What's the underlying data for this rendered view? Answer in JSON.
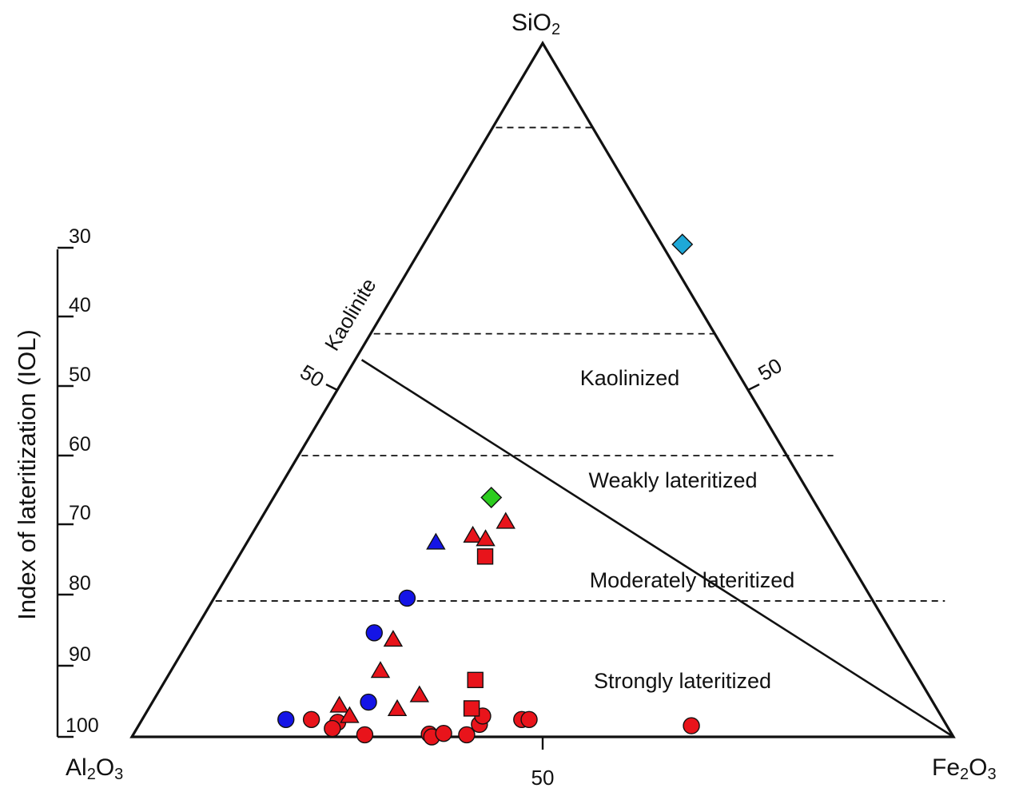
{
  "chart_data": {
    "type": "scatter",
    "title": "",
    "vertices": {
      "top": {
        "prefix": "SiO",
        "sub": "2"
      },
      "left": {
        "prefix": "Al",
        "sub": "2",
        "suffix": "O",
        "sub2": "3"
      },
      "right": {
        "prefix": "Fe",
        "sub": "2",
        "suffix": "O",
        "sub2": "3"
      }
    },
    "edge_ticks": {
      "bottom": "50",
      "left": "50",
      "right": "50"
    },
    "kaolinite_label": "Kaolinite",
    "iol_axis": {
      "label": "Index of lateritization (IOL)",
      "ticks": [
        "30",
        "40",
        "50",
        "60",
        "70",
        "80",
        "90",
        "100"
      ],
      "values": [
        30,
        40,
        50,
        60,
        70,
        80,
        90,
        100
      ]
    },
    "zones": [
      {
        "name": "Kaolinized",
        "iol_low": 35,
        "iol_high": 57
      },
      {
        "name": "Weakly lateritized",
        "iol_low": 57,
        "iol_high": 70
      },
      {
        "name": "Moderately lateritized",
        "iol_low": 70,
        "iol_high": 85.5
      },
      {
        "name": "Strongly lateritized",
        "iol_low": 85.5,
        "iol_high": 100
      }
    ],
    "boundaries_iol": [
      35,
      57,
      70,
      85.5
    ],
    "kaolinite_line": {
      "from": {
        "SiO2": 54,
        "Al2O3": 46,
        "Fe2O3": 0
      },
      "to": {
        "SiO2": 0,
        "Al2O3": 0,
        "Fe2O3": 100
      }
    },
    "series": [
      {
        "marker": "circle",
        "color": "#e8141b",
        "points": [
          {
            "SiO2": 2.5,
            "Fe2O3": 20.6
          },
          {
            "SiO2": 2.1,
            "Fe2O3": 24.0
          },
          {
            "SiO2": 1.2,
            "Fe2O3": 23.8
          },
          {
            "SiO2": 0.3,
            "Fe2O3": 28.2
          },
          {
            "SiO2": 0.4,
            "Fe2O3": 36.0
          },
          {
            "SiO2": 0.0,
            "Fe2O3": 36.5
          },
          {
            "SiO2": 0.5,
            "Fe2O3": 37.7
          },
          {
            "SiO2": 0.3,
            "Fe2O3": 40.6
          },
          {
            "SiO2": 1.8,
            "Fe2O3": 41.4
          },
          {
            "SiO2": 3.0,
            "Fe2O3": 41.2
          },
          {
            "SiO2": 2.5,
            "Fe2O3": 46.2
          },
          {
            "SiO2": 2.5,
            "Fe2O3": 47.1
          },
          {
            "SiO2": 1.6,
            "Fe2O3": 67.3
          }
        ]
      },
      {
        "marker": "triangle",
        "color": "#e8141b",
        "points": [
          {
            "SiO2": 29.0,
            "Fe2O3": 27.0
          },
          {
            "SiO2": 28.5,
            "Fe2O3": 28.8
          },
          {
            "SiO2": 31.0,
            "Fe2O3": 30.0
          },
          {
            "SiO2": 14.0,
            "Fe2O3": 24.8
          },
          {
            "SiO2": 9.5,
            "Fe2O3": 25.5
          },
          {
            "SiO2": 4.5,
            "Fe2O3": 23.0
          },
          {
            "SiO2": 3.0,
            "Fe2O3": 25.0
          },
          {
            "SiO2": 4.0,
            "Fe2O3": 30.3
          },
          {
            "SiO2": 6.0,
            "Fe2O3": 32.0
          }
        ]
      },
      {
        "marker": "square",
        "color": "#e8141b",
        "points": [
          {
            "SiO2": 26.0,
            "Fe2O3": 30.0
          },
          {
            "SiO2": 8.2,
            "Fe2O3": 37.7
          },
          {
            "SiO2": 4.1,
            "Fe2O3": 39.3
          }
        ]
      },
      {
        "marker": "circle",
        "color": "#1414e6",
        "points": [
          {
            "SiO2": 2.5,
            "Fe2O3": 17.5
          },
          {
            "SiO2": 5.0,
            "Fe2O3": 26.3
          },
          {
            "SiO2": 15.0,
            "Fe2O3": 22.0
          },
          {
            "SiO2": 20.0,
            "Fe2O3": 23.5
          }
        ]
      },
      {
        "marker": "triangle",
        "color": "#1414e6",
        "points": [
          {
            "SiO2": 28.0,
            "Fe2O3": 23.0
          }
        ]
      },
      {
        "marker": "diamond",
        "color": "#1ea8d8",
        "points": [
          {
            "SiO2": 71.0,
            "Fe2O3": 31.5
          }
        ]
      },
      {
        "marker": "diamond",
        "color": "#2ccc1e",
        "points": [
          {
            "SiO2": 34.5,
            "Fe2O3": 26.5
          }
        ]
      }
    ]
  }
}
